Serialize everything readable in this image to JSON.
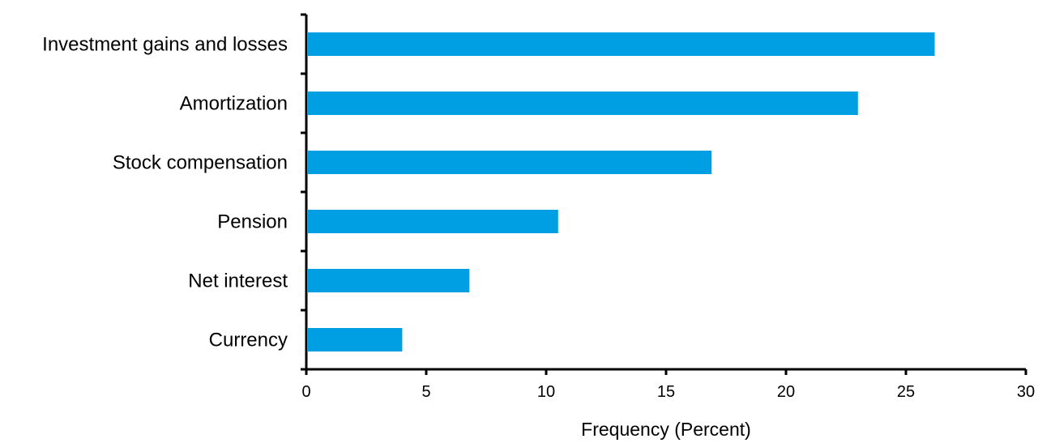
{
  "chart_data": {
    "type": "bar",
    "orientation": "horizontal",
    "title": "",
    "xlabel": "Frequency (Percent)",
    "ylabel": "",
    "categories": [
      "Investment gains and losses",
      "Amortization",
      "Stock compensation",
      "Pension",
      "Net interest",
      "Currency"
    ],
    "values": [
      26.2,
      23.0,
      16.9,
      10.5,
      6.8,
      4.0
    ],
    "xlim": [
      0,
      30
    ],
    "xticks": [
      0,
      5,
      10,
      15,
      20,
      25,
      30
    ],
    "grid": false,
    "legend": "none",
    "bar_color": "#009FE3",
    "axis_color": "#000000"
  }
}
